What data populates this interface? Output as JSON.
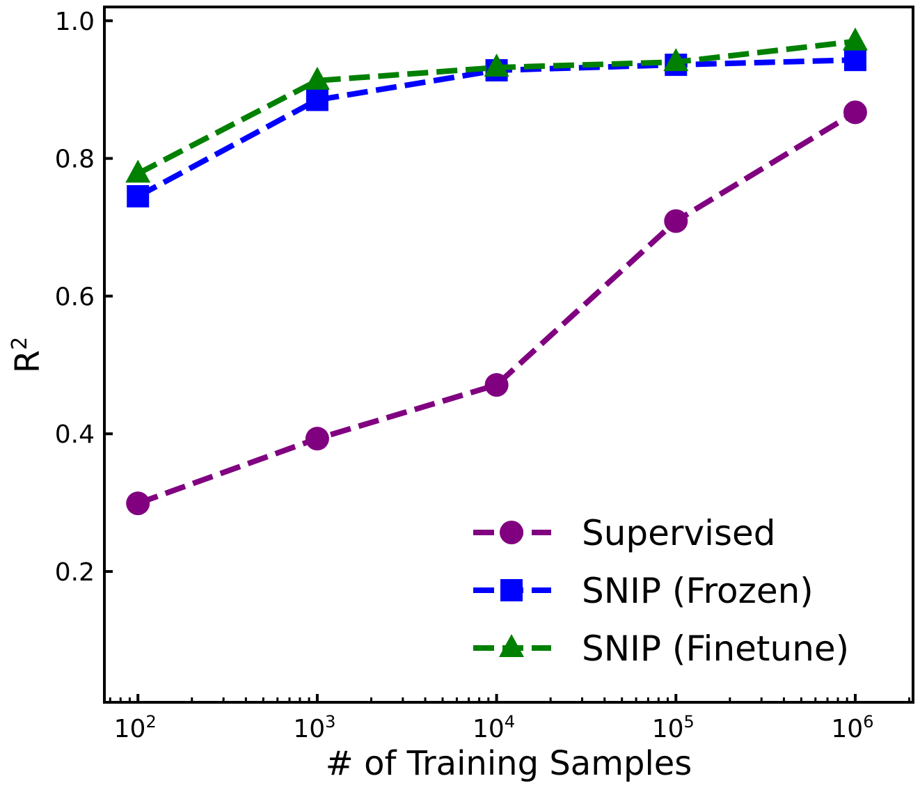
{
  "chart_data": {
    "type": "line",
    "xscale": "log",
    "x": [
      100,
      1000,
      10000,
      100000,
      1000000
    ],
    "x_exponents": [
      "2",
      "3",
      "4",
      "5",
      "6"
    ],
    "x_base": "10",
    "xlabel": "# of Training Samples",
    "ylabel_base": "R",
    "ylabel_sup": "2",
    "ylim": [
      0.01,
      1.02
    ],
    "xlim": [
      65,
      2100000
    ],
    "yticks": [
      0.2,
      0.4,
      0.6,
      0.8,
      1.0
    ],
    "ytick_labels": [
      "0.2",
      "0.4",
      "0.6",
      "0.8",
      "1.0"
    ],
    "legend_position": "lower-right",
    "series": [
      {
        "name": "Supervised",
        "color": "#800080",
        "marker": "circle",
        "values": [
          0.299,
          0.393,
          0.471,
          0.709,
          0.867
        ]
      },
      {
        "name": "SNIP (Frozen)",
        "color": "#0000ff",
        "marker": "square",
        "values": [
          0.745,
          0.885,
          0.928,
          0.936,
          0.943
        ]
      },
      {
        "name": "SNIP (Finetune)",
        "color": "#008000",
        "marker": "triangle",
        "values": [
          0.778,
          0.913,
          0.932,
          0.94,
          0.97
        ]
      }
    ]
  }
}
